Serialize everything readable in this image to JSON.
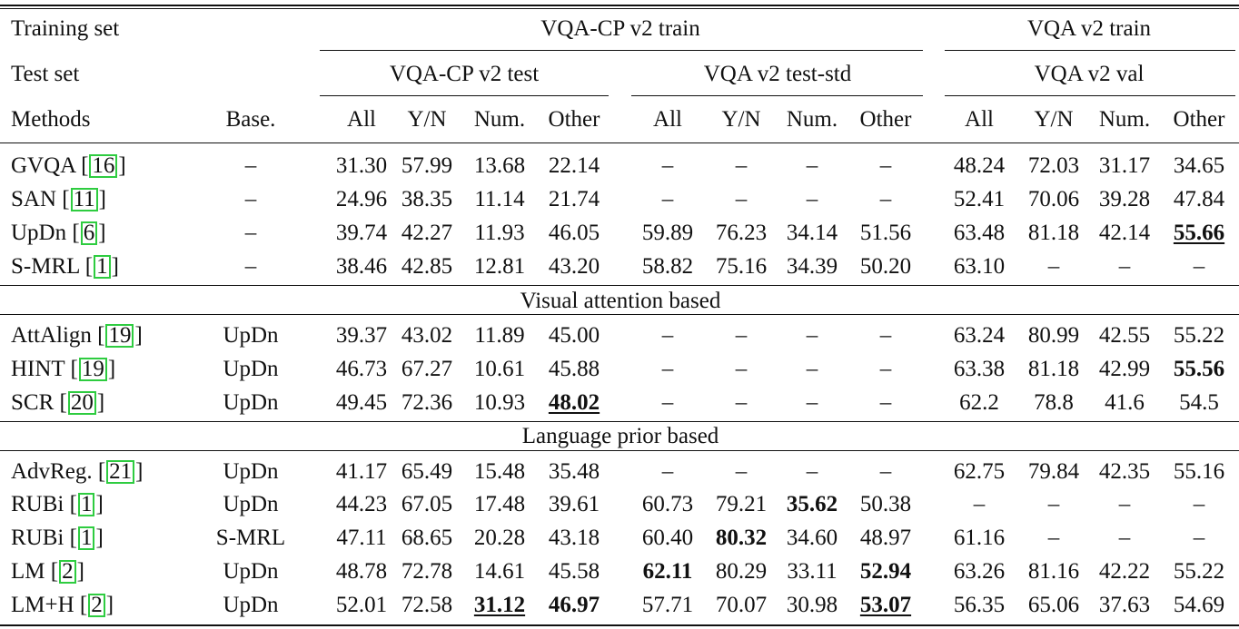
{
  "table": {
    "header": {
      "training_set_label": "Training set",
      "test_set_label": "Test set",
      "methods_label": "Methods",
      "base_label": "Base.",
      "train_groups": [
        "VQA-CP v2 train",
        "VQA v2 train"
      ],
      "test_groups": [
        "VQA-CP v2 test",
        "VQA v2 test-std",
        "VQA v2 val"
      ],
      "metric_columns": [
        "All",
        "Y/N",
        "Num.",
        "Other",
        "All",
        "Y/N",
        "Num.",
        "Other",
        "All",
        "Y/N",
        "Num.",
        "Other"
      ]
    },
    "sections": [
      {
        "title": "",
        "rows": [
          {
            "method": "GVQA",
            "ref": "16",
            "base": "–",
            "values": [
              "31.30",
              "57.99",
              "13.68",
              "22.14",
              "–",
              "–",
              "–",
              "–",
              "48.24",
              "72.03",
              "31.17",
              "34.65"
            ],
            "bold": [],
            "underline": []
          },
          {
            "method": "SAN",
            "ref": "11",
            "base": "–",
            "values": [
              "24.96",
              "38.35",
              "11.14",
              "21.74",
              "–",
              "–",
              "–",
              "–",
              "52.41",
              "70.06",
              "39.28",
              "47.84"
            ],
            "bold": [],
            "underline": []
          },
          {
            "method": "UpDn",
            "ref": "6",
            "base": "–",
            "values": [
              "39.74",
              "42.27",
              "11.93",
              "46.05",
              "59.89",
              "76.23",
              "34.14",
              "51.56",
              "63.48",
              "81.18",
              "42.14",
              "55.66"
            ],
            "bold": [
              11
            ],
            "underline": [
              11
            ]
          },
          {
            "method": "S-MRL",
            "ref": "1",
            "base": "–",
            "values": [
              "38.46",
              "42.85",
              "12.81",
              "43.20",
              "58.82",
              "75.16",
              "34.39",
              "50.20",
              "63.10",
              "–",
              "–",
              "–"
            ],
            "bold": [],
            "underline": []
          }
        ]
      },
      {
        "title": "Visual attention based",
        "rows": [
          {
            "method": "AttAlign",
            "ref": "19",
            "base": "UpDn",
            "values": [
              "39.37",
              "43.02",
              "11.89",
              "45.00",
              "–",
              "–",
              "–",
              "–",
              "63.24",
              "80.99",
              "42.55",
              "55.22"
            ],
            "bold": [],
            "underline": []
          },
          {
            "method": "HINT",
            "ref": "19",
            "base": "UpDn",
            "values": [
              "46.73",
              "67.27",
              "10.61",
              "45.88",
              "–",
              "–",
              "–",
              "–",
              "63.38",
              "81.18",
              "42.99",
              "55.56"
            ],
            "bold": [
              11
            ],
            "underline": []
          },
          {
            "method": "SCR",
            "ref": "20",
            "base": "UpDn",
            "values": [
              "49.45",
              "72.36",
              "10.93",
              "48.02",
              "–",
              "–",
              "–",
              "–",
              "62.2",
              "78.8",
              "41.6",
              "54.5"
            ],
            "bold": [
              3
            ],
            "underline": [
              3
            ]
          }
        ]
      },
      {
        "title": "Language prior based",
        "rows": [
          {
            "method": "AdvReg.",
            "ref": "21",
            "base": "UpDn",
            "values": [
              "41.17",
              "65.49",
              "15.48",
              "35.48",
              "–",
              "–",
              "–",
              "–",
              "62.75",
              "79.84",
              "42.35",
              "55.16"
            ],
            "bold": [],
            "underline": []
          },
          {
            "method": "RUBi",
            "ref": "1",
            "base": "UpDn",
            "values": [
              "44.23",
              "67.05",
              "17.48",
              "39.61",
              "60.73",
              "79.21",
              "35.62",
              "50.38",
              "–",
              "–",
              "–",
              "–"
            ],
            "bold": [
              6
            ],
            "underline": []
          },
          {
            "method": "RUBi",
            "ref": "1",
            "base": "S-MRL",
            "values": [
              "47.11",
              "68.65",
              "20.28",
              "43.18",
              "60.40",
              "80.32",
              "34.60",
              "48.97",
              "61.16",
              "–",
              "–",
              "–"
            ],
            "bold": [
              5
            ],
            "underline": []
          },
          {
            "method": "LM",
            "ref": "2",
            "base": "UpDn",
            "values": [
              "48.78",
              "72.78",
              "14.61",
              "45.58",
              "62.11",
              "80.29",
              "33.11",
              "52.94",
              "63.26",
              "81.16",
              "42.22",
              "55.22"
            ],
            "bold": [
              4,
              7
            ],
            "underline": []
          },
          {
            "method": "LM+H",
            "ref": "2",
            "base": "UpDn",
            "values": [
              "52.01",
              "72.58",
              "31.12",
              "46.97",
              "57.71",
              "70.07",
              "30.98",
              "53.07",
              "56.35",
              "65.06",
              "37.63",
              "54.69"
            ],
            "bold": [
              2,
              3,
              7
            ],
            "underline": [
              2,
              7
            ]
          }
        ]
      }
    ]
  }
}
